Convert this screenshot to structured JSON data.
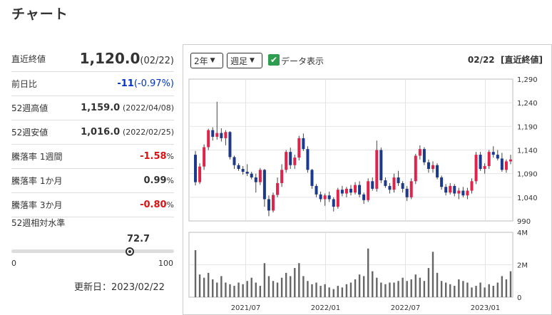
{
  "title": "チャート",
  "summary": {
    "close": {
      "label": "直近終値",
      "value": "1,120.0",
      "date": "(02/22)"
    },
    "change": {
      "label": "前日比",
      "value": "-11",
      "pct": "(-0.97%)"
    },
    "high52": {
      "label": "52週高値",
      "value": "1,159.0",
      "date": "(2022/04/08)"
    },
    "low52": {
      "label": "52週安値",
      "value": "1,016.0",
      "date": "(2022/02/25)"
    },
    "r1w": {
      "label": "騰落率 1週間",
      "value": "-1.58",
      "unit": "%"
    },
    "r1m": {
      "label": "騰落率 1か月",
      "value": "0.99",
      "unit": "%"
    },
    "r3m": {
      "label": "騰落率 3か月",
      "value": "-0.80",
      "unit": "%"
    },
    "relative": {
      "label": "52週相対水準",
      "value": "72.7",
      "level_pct": 72.7,
      "min": "0",
      "max": "100"
    },
    "updated": "更新日：2023/02/22"
  },
  "controls": {
    "period": "2年",
    "interval": "週足",
    "data_display_label": "データ表示",
    "date": "02/22",
    "basis": "[直近終値]"
  },
  "colors": {
    "up": "#e0234a",
    "down": "#1c3a8c",
    "volume": "#666666",
    "accent_green": "#2e9d4e",
    "neg_blue": "#0033cc",
    "red": "#dd1111"
  },
  "chart_data": {
    "type": "candlestick",
    "price_ticks": [
      "1,290",
      "1,240",
      "1,190",
      "1,140",
      "1,090",
      "1,040",
      "990"
    ],
    "price_range": [
      990,
      1290
    ],
    "volume_ticks": [
      "4M",
      "2M",
      "0"
    ],
    "volume_range": [
      0,
      4000000
    ],
    "x_labels": [
      "2021/07",
      "2022/01",
      "2022/07",
      "2023/01"
    ],
    "ohlc": [
      [
        1130,
        1138,
        1065,
        1072
      ],
      [
        1072,
        1112,
        1068,
        1105
      ],
      [
        1105,
        1152,
        1098,
        1146
      ],
      [
        1146,
        1185,
        1140,
        1182
      ],
      [
        1182,
        1188,
        1160,
        1168
      ],
      [
        1168,
        1242,
        1162,
        1176
      ],
      [
        1176,
        1186,
        1158,
        1165
      ],
      [
        1165,
        1182,
        1150,
        1178
      ],
      [
        1178,
        1180,
        1120,
        1125
      ],
      [
        1125,
        1128,
        1100,
        1108
      ],
      [
        1108,
        1112,
        1096,
        1100
      ],
      [
        1100,
        1106,
        1088,
        1094
      ],
      [
        1094,
        1110,
        1085,
        1090
      ],
      [
        1090,
        1094,
        1078,
        1082
      ],
      [
        1082,
        1090,
        1050,
        1072
      ],
      [
        1072,
        1102,
        1066,
        1098
      ],
      [
        1098,
        1100,
        1020,
        1036
      ],
      [
        1036,
        1044,
        1000,
        1012
      ],
      [
        1012,
        1050,
        1008,
        1045
      ],
      [
        1045,
        1082,
        1040,
        1070
      ],
      [
        1070,
        1110,
        1062,
        1098
      ],
      [
        1098,
        1140,
        1092,
        1136
      ],
      [
        1136,
        1145,
        1100,
        1108
      ],
      [
        1108,
        1130,
        1100,
        1124
      ],
      [
        1124,
        1170,
        1118,
        1165
      ],
      [
        1165,
        1175,
        1138,
        1142
      ],
      [
        1142,
        1148,
        1092,
        1098
      ],
      [
        1098,
        1100,
        1058,
        1064
      ],
      [
        1064,
        1068,
        1040,
        1046
      ],
      [
        1046,
        1052,
        1030,
        1036
      ],
      [
        1036,
        1048,
        1022,
        1044
      ],
      [
        1044,
        1052,
        1030,
        1036
      ],
      [
        1036,
        1040,
        1010,
        1020
      ],
      [
        1020,
        1060,
        1016,
        1056
      ],
      [
        1056,
        1064,
        1042,
        1048
      ],
      [
        1048,
        1062,
        1040,
        1058
      ],
      [
        1058,
        1066,
        1044,
        1050
      ],
      [
        1050,
        1072,
        1046,
        1066
      ],
      [
        1066,
        1074,
        1040,
        1046
      ],
      [
        1046,
        1050,
        1026,
        1034
      ],
      [
        1034,
        1080,
        1030,
        1074
      ],
      [
        1074,
        1082,
        1054,
        1058
      ],
      [
        1058,
        1160,
        1052,
        1140
      ],
      [
        1140,
        1145,
        1070,
        1076
      ],
      [
        1076,
        1082,
        1060,
        1064
      ],
      [
        1064,
        1070,
        1048,
        1056
      ],
      [
        1056,
        1090,
        1050,
        1082
      ],
      [
        1082,
        1096,
        1064,
        1070
      ],
      [
        1070,
        1074,
        1050,
        1058
      ],
      [
        1058,
        1064,
        1032,
        1040
      ],
      [
        1040,
        1080,
        1036,
        1074
      ],
      [
        1074,
        1132,
        1068,
        1128
      ],
      [
        1128,
        1150,
        1120,
        1142
      ],
      [
        1142,
        1146,
        1108,
        1114
      ],
      [
        1114,
        1120,
        1092,
        1100
      ],
      [
        1100,
        1116,
        1092,
        1108
      ],
      [
        1108,
        1112,
        1078,
        1082
      ],
      [
        1082,
        1086,
        1056,
        1062
      ],
      [
        1062,
        1068,
        1044,
        1050
      ],
      [
        1050,
        1070,
        1046,
        1064
      ],
      [
        1064,
        1068,
        1042,
        1048
      ],
      [
        1048,
        1060,
        1036,
        1054
      ],
      [
        1054,
        1062,
        1040,
        1044
      ],
      [
        1044,
        1060,
        1036,
        1054
      ],
      [
        1054,
        1080,
        1048,
        1074
      ],
      [
        1074,
        1136,
        1068,
        1130
      ],
      [
        1130,
        1136,
        1096,
        1100
      ],
      [
        1100,
        1112,
        1090,
        1106
      ],
      [
        1106,
        1140,
        1100,
        1136
      ],
      [
        1136,
        1148,
        1124,
        1130
      ],
      [
        1130,
        1140,
        1118,
        1122
      ],
      [
        1122,
        1134,
        1094,
        1098
      ],
      [
        1098,
        1120,
        1092,
        1116
      ],
      [
        1116,
        1130,
        1110,
        1120
      ]
    ],
    "volume": [
      2.9,
      1.4,
      1.2,
      1.5,
      1.1,
      0.9,
      1.3,
      0.9,
      0.8,
      0.7,
      0.9,
      0.8,
      1.0,
      1.2,
      0.9,
      0.7,
      2.1,
      1.3,
      1.0,
      0.9,
      1.2,
      1.5,
      1.3,
      1.8,
      2.1,
      1.3,
      1.0,
      0.8,
      0.9,
      0.7,
      0.8,
      0.6,
      0.5,
      0.7,
      0.6,
      0.8,
      0.9,
      1.1,
      1.4,
      1.3,
      3.0,
      1.6,
      1.2,
      0.9,
      0.8,
      0.9,
      0.9,
      1.0,
      1.2,
      1.0,
      1.1,
      1.4,
      1.2,
      1.0,
      1.8,
      2.8,
      1.5,
      1.0,
      0.9,
      0.8,
      0.7,
      1.1,
      1.0,
      0.9,
      0.6,
      0.7,
      0.9,
      0.6,
      0.8,
      0.7,
      0.9,
      1.3,
      1.1,
      1.6
    ]
  }
}
